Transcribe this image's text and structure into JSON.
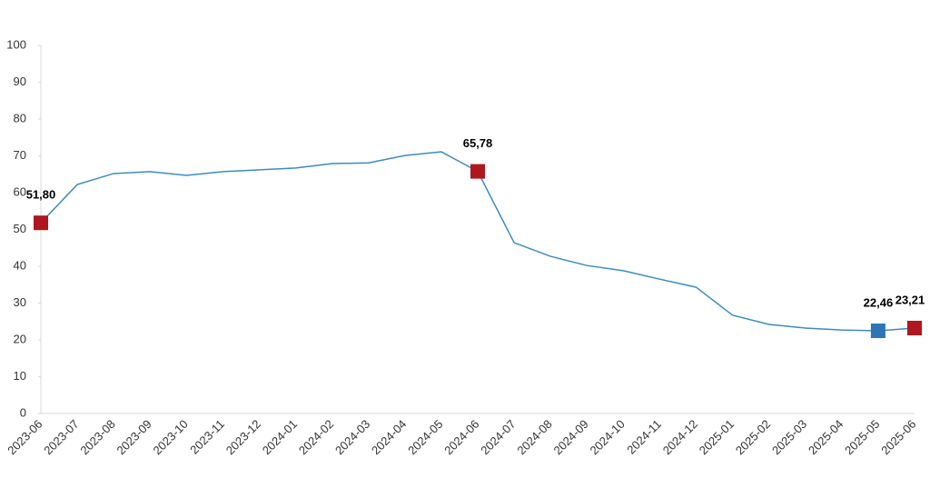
{
  "chart_data": {
    "type": "line",
    "categories": [
      "2023-06",
      "2023-07",
      "2023-08",
      "2023-09",
      "2023-10",
      "2023-11",
      "2023-12",
      "2024-01",
      "2024-02",
      "2024-03",
      "2024-04",
      "2024-05",
      "2024-06",
      "2024-07",
      "2024-08",
      "2024-09",
      "2024-10",
      "2024-11",
      "2024-12",
      "2025-01",
      "2025-02",
      "2025-03",
      "2025-04",
      "2025-05",
      "2025-06"
    ],
    "values": [
      51.8,
      62.2,
      65.2,
      65.7,
      64.7,
      65.7,
      66.2,
      66.7,
      67.9,
      68.1,
      70.1,
      71.1,
      65.78,
      46.4,
      42.7,
      40.2,
      38.8,
      36.5,
      34.3,
      26.7,
      24.2,
      23.2,
      22.7,
      22.46,
      23.21
    ],
    "value_labels": [
      "51,80",
      null,
      null,
      null,
      null,
      null,
      null,
      null,
      null,
      null,
      null,
      null,
      "65,78",
      null,
      null,
      null,
      null,
      null,
      null,
      null,
      null,
      null,
      null,
      "22,46",
      "23,21"
    ],
    "marker_colors": [
      "#b0161d",
      null,
      null,
      null,
      null,
      null,
      null,
      null,
      null,
      null,
      null,
      null,
      "#b0161d",
      null,
      null,
      null,
      null,
      null,
      null,
      null,
      null,
      null,
      null,
      "#2e75b6",
      "#b0161d"
    ],
    "color": "#3b8bc2",
    "ylim": [
      0,
      100
    ],
    "yticks": [
      0,
      10,
      20,
      30,
      40,
      50,
      60,
      70,
      80,
      90,
      100
    ],
    "grid": false
  }
}
